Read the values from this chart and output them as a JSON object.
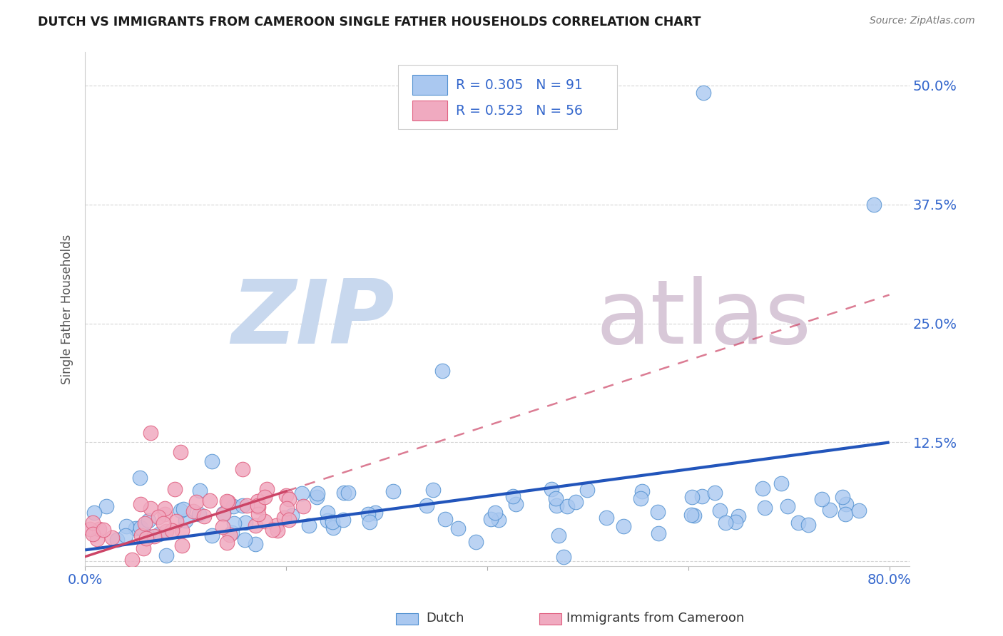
{
  "title": "DUTCH VS IMMIGRANTS FROM CAMEROON SINGLE FATHER HOUSEHOLDS CORRELATION CHART",
  "source": "Source: ZipAtlas.com",
  "ylabel": "Single Father Households",
  "xlim": [
    0.0,
    0.82
  ],
  "ylim": [
    -0.005,
    0.535
  ],
  "xticks": [
    0.0,
    0.2,
    0.4,
    0.6,
    0.8
  ],
  "xticklabels": [
    "0.0%",
    "",
    "",
    "",
    "80.0%"
  ],
  "yticks": [
    0.0,
    0.125,
    0.25,
    0.375,
    0.5
  ],
  "yticklabels": [
    "",
    "12.5%",
    "25.0%",
    "37.5%",
    "50.0%"
  ],
  "dutch_R": 0.305,
  "dutch_N": 91,
  "cameroon_R": 0.523,
  "cameroon_N": 56,
  "dutch_color": "#aac8f0",
  "cameroon_color": "#f0aac0",
  "dutch_edge_color": "#5090d0",
  "cameroon_edge_color": "#e06080",
  "dutch_line_color": "#2255bb",
  "cameroon_line_color": "#cc4466",
  "background_color": "#ffffff",
  "grid_color": "#cccccc",
  "tick_color": "#3366cc",
  "legend_border": "#cccccc",
  "watermark_zip_color": "#c8d8ee",
  "watermark_atlas_color": "#d8c8d8"
}
